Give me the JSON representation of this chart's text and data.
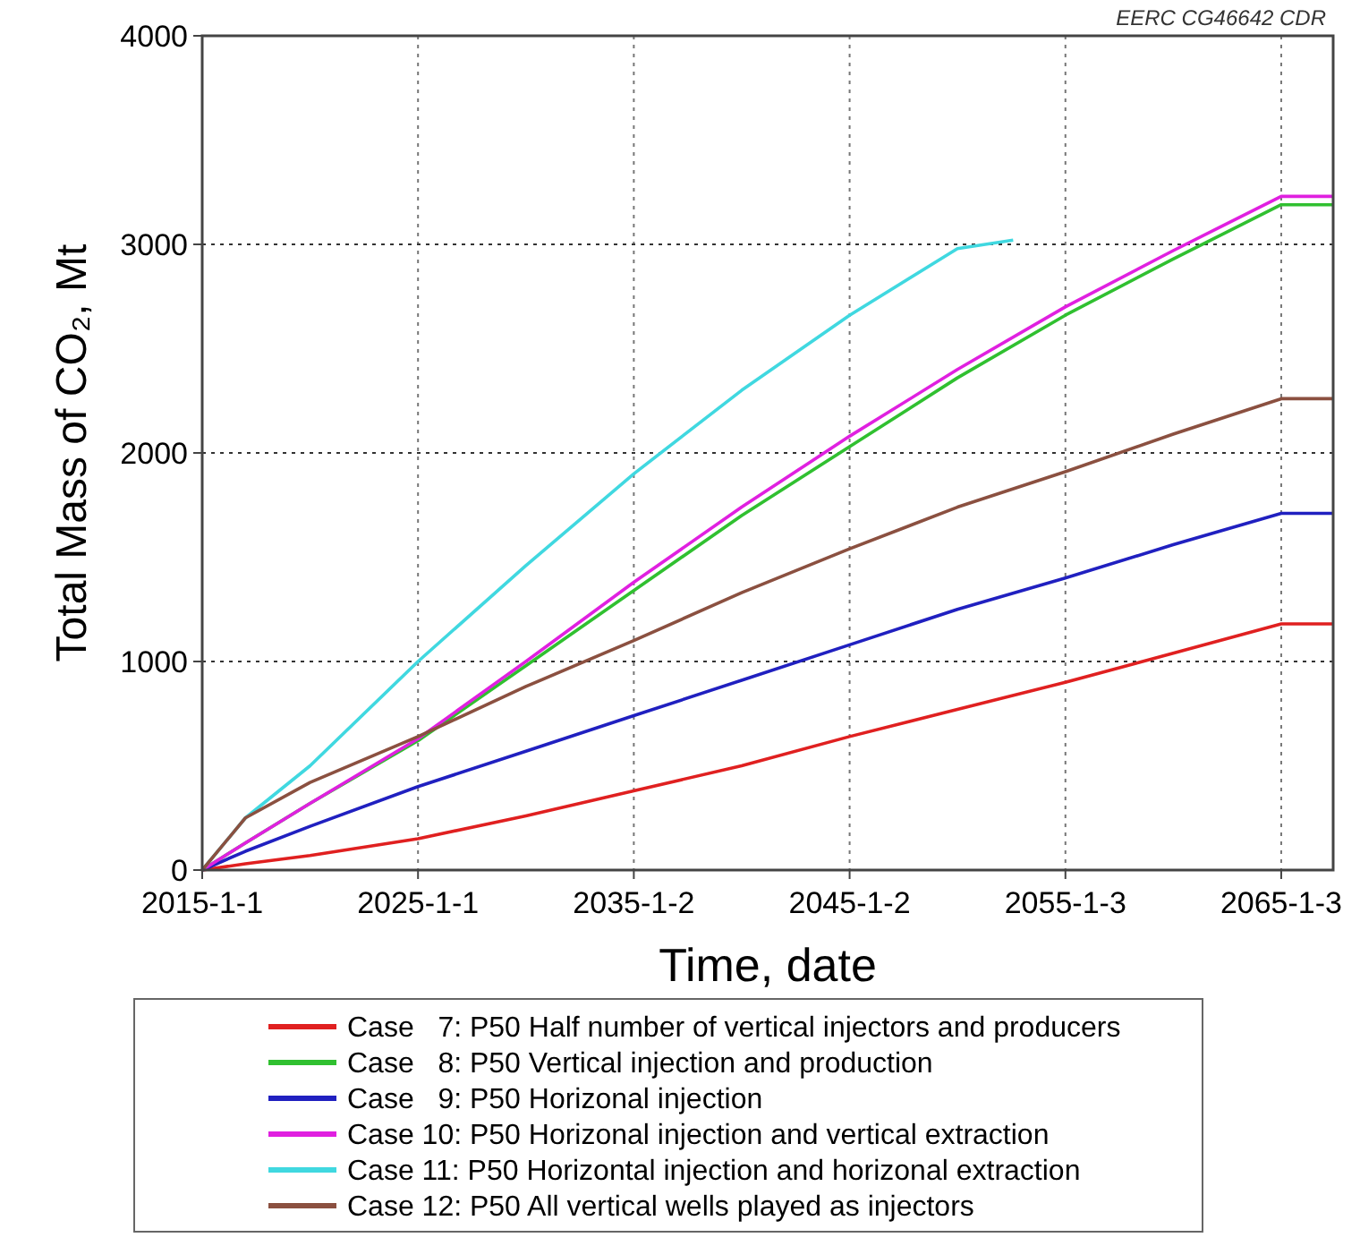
{
  "chart_data": {
    "type": "line",
    "xlabel": "Time, date",
    "ylabel": "Total Mass of CO₂, Mt",
    "annotations": [
      "EERC CG46642 CDR"
    ],
    "xlim": [
      "2015-01-01",
      "2067-06-01"
    ],
    "ylim": [
      0,
      4000
    ],
    "xticks": [
      {
        "value": "2015-01-01",
        "label": "2015-1-1"
      },
      {
        "value": "2025-01-01",
        "label": "2025-1-1"
      },
      {
        "value": "2035-01-02",
        "label": "2035-1-2"
      },
      {
        "value": "2045-01-02",
        "label": "2045-1-2"
      },
      {
        "value": "2055-01-03",
        "label": "2055-1-3"
      },
      {
        "value": "2065-01-03",
        "label": "2065-1-3"
      }
    ],
    "yticks": [
      0,
      1000,
      2000,
      3000,
      4000
    ],
    "grid": true,
    "legend": "bottom",
    "marker": "none",
    "line_style": "solid",
    "x": [
      "2015-01-01",
      "2017-01-01",
      "2020-01-01",
      "2025-01-01",
      "2030-01-01",
      "2035-01-01",
      "2040-01-01",
      "2045-01-01",
      "2050-01-01",
      "2055-01-01",
      "2060-01-01",
      "2065-01-03",
      "2067-06-01"
    ],
    "series": [
      {
        "name": "Case   7: P50 Half number of vertical injectors and producers",
        "color": "#e02020",
        "values": [
          0,
          30,
          70,
          150,
          260,
          380,
          500,
          640,
          770,
          900,
          1040,
          1180,
          1180
        ]
      },
      {
        "name": "Case   8: P50 Vertical injection and production",
        "color": "#30c030",
        "values": [
          0,
          130,
          320,
          620,
          980,
          1340,
          1700,
          2030,
          2360,
          2660,
          2930,
          3190,
          3190
        ]
      },
      {
        "name": "Case   9: P50 Horizonal injection",
        "color": "#2020c0",
        "values": [
          0,
          90,
          210,
          400,
          570,
          740,
          910,
          1080,
          1250,
          1400,
          1560,
          1710,
          1710
        ]
      },
      {
        "name": "Case 10: P50 Horizonal injection and vertical extraction",
        "color": "#e020e0",
        "values": [
          0,
          130,
          320,
          630,
          1000,
          1380,
          1740,
          2080,
          2400,
          2700,
          2970,
          3230,
          3230
        ]
      },
      {
        "name": "Case 11: P50 Horizontal injection and horizonal extraction",
        "color": "#40d8e0",
        "x": [
          "2015-01-01",
          "2017-01-01",
          "2020-01-01",
          "2025-01-01",
          "2030-01-01",
          "2035-01-01",
          "2040-01-01",
          "2045-01-01",
          "2050-01-01",
          "2052-08-01"
        ],
        "values": [
          0,
          250,
          500,
          1000,
          1460,
          1900,
          2300,
          2660,
          2980,
          3020
        ]
      },
      {
        "name": "Case 12: P50 All vertical wells played as injectors",
        "color": "#8b5040",
        "values": [
          0,
          250,
          420,
          640,
          880,
          1100,
          1330,
          1540,
          1740,
          1910,
          2090,
          2260,
          2260
        ]
      }
    ]
  }
}
